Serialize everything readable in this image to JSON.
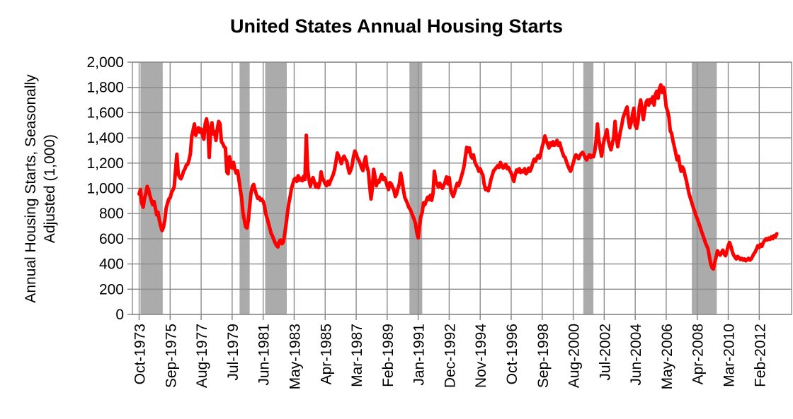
{
  "page": {
    "background": "#FFFFFF"
  },
  "chart_data": {
    "type": "line",
    "title": "United States Annual Housing Starts",
    "y_axis_title_line1": "Annual Housing Starts, Seasonally",
    "y_axis_title_line2": "Adjusted (1,000)",
    "ylim": [
      0,
      2000
    ],
    "y_tick_step": 200,
    "y_tick_labels": [
      "0",
      "200",
      "400",
      "600",
      "800",
      "1,000",
      "1,200",
      "1,400",
      "1,600",
      "1,800",
      "2,000"
    ],
    "x_tick_labels": [
      "Oct-1973",
      "Sep-1975",
      "Aug-1977",
      "Jul-1979",
      "Jun-1981",
      "May-1983",
      "Apr-1985",
      "Mar-1987",
      "Feb-1989",
      "Jan-1991",
      "Dec-1992",
      "Nov-1994",
      "Oct-1996",
      "Sep-1998",
      "Aug-2000",
      "Jul-2002",
      "Jun-2004",
      "May-2006",
      "Apr-2008",
      "Mar-2010",
      "Feb-2012"
    ],
    "x_tick_months": [
      0,
      23,
      46,
      69,
      92,
      115,
      138,
      161,
      184,
      207,
      230,
      253,
      276,
      299,
      322,
      345,
      368,
      391,
      414,
      437,
      460
    ],
    "x_domain_months": [
      -5,
      484
    ],
    "grid": true,
    "legend": "none",
    "colors": {
      "line": "#FF0000",
      "recession_band": "#ABABAB",
      "gridline": "#8C8C8C",
      "axis": "#808080",
      "text": "#000000",
      "background": "#FFFFFF"
    },
    "recession_bands_months": [
      [
        1,
        17.5
      ],
      [
        74.5,
        82
      ],
      [
        93.5,
        109.5
      ],
      [
        200.5,
        210
      ],
      [
        329.5,
        337
      ],
      [
        410,
        428.5
      ]
    ],
    "series": [
      {
        "name": "Annual Housing Starts (thousands)",
        "start": "Oct-1973",
        "end": "Mar-2013",
        "frequency": "monthly",
        "values": [
          955,
          990,
          880,
          850,
          920,
          960,
          1015,
          990,
          940,
          905,
          870,
          895,
          845,
          790,
          810,
          745,
          700,
          665,
          690,
          745,
          840,
          880,
          915,
          925,
          965,
          985,
          1010,
          1140,
          1270,
          1115,
          1090,
          1075,
          1100,
          1135,
          1155,
          1185,
          1190,
          1225,
          1275,
          1410,
          1460,
          1510,
          1420,
          1455,
          1480,
          1445,
          1470,
          1420,
          1390,
          1510,
          1550,
          1480,
          1245,
          1460,
          1520,
          1430,
          1450,
          1380,
          1470,
          1530,
          1510,
          1370,
          1355,
          1330,
          1320,
          1130,
          1115,
          1250,
          1190,
          1160,
          1205,
          1150,
          1120,
          1140,
          1070,
          995,
          925,
          810,
          750,
          695,
          685,
          745,
          860,
          960,
          1015,
          1030,
          985,
          950,
          920,
          930,
          905,
          915,
          895,
          860,
          795,
          760,
          720,
          680,
          640,
          620,
          590,
          565,
          545,
          535,
          580,
          590,
          560,
          575,
          640,
          715,
          800,
          880,
          935,
          1000,
          1035,
          1070,
          1080,
          1055,
          1100,
          1065,
          1080,
          1060,
          1095,
          1070,
          1420,
          1150,
          1070,
          1015,
          1060,
          1085,
          1050,
          1010,
          1035,
          1005,
          1045,
          1130,
          1080,
          1060,
          1035,
          1020,
          1055,
          1030,
          1060,
          1085,
          1110,
          1150,
          1210,
          1280,
          1255,
          1230,
          1195,
          1235,
          1255,
          1230,
          1215,
          1160,
          1120,
          1145,
          1180,
          1250,
          1295,
          1275,
          1240,
          1220,
          1195,
          1160,
          1140,
          1210,
          1250,
          1170,
          1135,
          1020,
          915,
          1000,
          1150,
          1090,
          1020,
          1060,
          1050,
          1085,
          1110,
          1070,
          1085,
          1060,
          1020,
          990,
          1045,
          1035,
          1010,
          985,
          935,
          955,
          1000,
          1035,
          1120,
          1065,
          990,
          930,
          905,
          880,
          850,
          835,
          810,
          780,
          755,
          720,
          650,
          607,
          700,
          775,
          810,
          885,
          870,
          900,
          930,
          910,
          945,
          905,
          960,
          1135,
          1060,
          1035,
          1010,
          1040,
          1015,
          1000,
          1025,
          1050,
          1090,
          1035,
          1085,
          1000,
          960,
          935,
          965,
          1010,
          1040,
          1020,
          1055,
          1090,
          1130,
          1175,
          1250,
          1325,
          1290,
          1320,
          1260,
          1240,
          1265,
          1210,
          1185,
          1165,
          1135,
          1155,
          1125,
          1105,
          1030,
          990,
          1000,
          980,
          1020,
          1070,
          1105,
          1140,
          1150,
          1165,
          1180,
          1165,
          1205,
          1185,
          1160,
          1175,
          1190,
          1155,
          1165,
          1140,
          1120,
          1085,
          1055,
          1110,
          1145,
          1130,
          1155,
          1125,
          1140,
          1130,
          1155,
          1115,
          1130,
          1160,
          1135,
          1160,
          1200,
          1230,
          1215,
          1240,
          1260,
          1240,
          1280,
          1330,
          1370,
          1415,
          1380,
          1350,
          1320,
          1360,
          1340,
          1370,
          1340,
          1355,
          1380,
          1340,
          1360,
          1320,
          1285,
          1255,
          1245,
          1210,
          1180,
          1155,
          1135,
          1165,
          1200,
          1240,
          1265,
          1255,
          1235,
          1260,
          1275,
          1285,
          1265,
          1240,
          1225,
          1250,
          1265,
          1245,
          1260,
          1250,
          1290,
          1380,
          1510,
          1390,
          1320,
          1255,
          1330,
          1390,
          1420,
          1465,
          1380,
          1340,
          1305,
          1355,
          1400,
          1530,
          1410,
          1330,
          1390,
          1450,
          1500,
          1560,
          1590,
          1620,
          1645,
          1545,
          1480,
          1520,
          1585,
          1635,
          1500,
          1475,
          1525,
          1640,
          1700,
          1625,
          1545,
          1620,
          1680,
          1700,
          1660,
          1705,
          1680,
          1725,
          1660,
          1745,
          1770,
          1715,
          1790,
          1820,
          1760,
          1800,
          1745,
          1645,
          1615,
          1565,
          1455,
          1435,
          1375,
          1330,
          1280,
          1225,
          1255,
          1185,
          1135,
          1170,
          1150,
          1100,
          1060,
          1005,
          955,
          920,
          885,
          850,
          820,
          785,
          760,
          730,
          700,
          665,
          635,
          605,
          570,
          545,
          520,
          460,
          400,
          370,
          360,
          415,
          455,
          505,
          485,
          470,
          490,
          510,
          480,
          465,
          500,
          545,
          570,
          540,
          500,
          470,
          455,
          440,
          460,
          450,
          435,
          445,
          430,
          440,
          425,
          435,
          445,
          430,
          440,
          460,
          480,
          495,
          520,
          545,
          530,
          555,
          540,
          570,
          585,
          600,
          590,
          605,
          595,
          615,
          600,
          625,
          615,
          640
        ]
      }
    ]
  }
}
